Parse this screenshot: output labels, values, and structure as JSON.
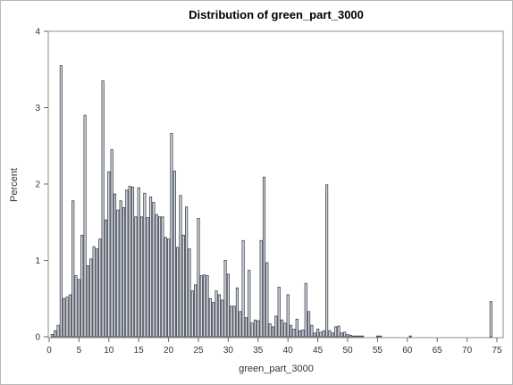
{
  "chart_data": {
    "type": "bar",
    "title": "Distribution of green_part_3000",
    "xlabel": "green_part_3000",
    "ylabel": "Percent",
    "xlim": [
      0,
      75
    ],
    "ylim": [
      0,
      4
    ],
    "bin_width": 0.5,
    "x_ticks": [
      0,
      5,
      10,
      15,
      20,
      25,
      30,
      35,
      40,
      45,
      50,
      55,
      60,
      65,
      70,
      75
    ],
    "y_ticks": [
      0,
      1,
      2,
      3,
      4
    ],
    "bar_fill": "#d9dee8",
    "bar_stroke": "#3a3f48",
    "x": [
      0.5,
      1.0,
      1.5,
      2.0,
      2.5,
      3.0,
      3.5,
      4.0,
      4.5,
      5.0,
      5.5,
      6.0,
      6.5,
      7.0,
      7.5,
      8.0,
      8.5,
      9.0,
      9.5,
      10.0,
      10.5,
      11.0,
      11.5,
      12.0,
      12.5,
      13.0,
      13.5,
      14.0,
      14.5,
      15.0,
      15.5,
      16.0,
      16.5,
      17.0,
      17.5,
      18.0,
      18.5,
      19.0,
      19.5,
      20.0,
      20.5,
      21.0,
      21.5,
      22.0,
      22.5,
      23.0,
      23.5,
      24.0,
      24.5,
      25.0,
      25.5,
      26.0,
      26.5,
      27.0,
      27.5,
      28.0,
      28.5,
      29.0,
      29.5,
      30.0,
      30.5,
      31.0,
      31.5,
      32.0,
      32.5,
      33.0,
      33.5,
      34.0,
      34.5,
      35.0,
      35.5,
      36.0,
      36.5,
      37.0,
      37.5,
      38.0,
      38.5,
      39.0,
      39.5,
      40.0,
      40.5,
      41.0,
      41.5,
      42.0,
      42.5,
      43.0,
      43.5,
      44.0,
      44.5,
      45.0,
      45.5,
      46.0,
      46.5,
      47.0,
      47.5,
      48.0,
      48.5,
      49.0,
      49.5,
      50.0,
      50.5,
      51.0,
      51.5,
      52.0,
      52.5,
      53.0,
      53.5,
      54.0,
      54.5,
      55.0,
      55.5,
      56.0,
      56.5,
      57.0,
      57.5,
      58.0,
      58.5,
      59.0,
      59.5,
      60.0,
      60.5,
      61.0,
      61.5,
      62.0,
      62.5,
      63.0,
      63.5,
      64.0,
      64.5,
      65.0,
      65.5,
      66.0,
      66.5,
      67.0,
      67.5,
      68.0,
      68.5,
      69.0,
      69.5,
      70.0,
      70.5,
      71.0,
      71.5,
      72.0,
      72.5,
      73.0,
      73.5,
      74.0
    ],
    "values": [
      0.03,
      0.08,
      0.15,
      3.55,
      0.5,
      0.52,
      0.55,
      1.78,
      0.8,
      0.75,
      1.33,
      2.9,
      0.93,
      1.02,
      1.18,
      1.15,
      1.28,
      3.35,
      1.53,
      2.16,
      2.45,
      1.87,
      1.66,
      1.78,
      1.69,
      1.92,
      1.97,
      1.96,
      1.57,
      1.95,
      1.57,
      1.88,
      1.56,
      1.83,
      1.76,
      1.6,
      1.57,
      1.57,
      1.3,
      1.28,
      2.66,
      2.17,
      1.17,
      1.85,
      1.33,
      1.7,
      1.15,
      0.6,
      0.68,
      1.55,
      0.8,
      0.81,
      0.8,
      0.5,
      0.45,
      0.6,
      0.55,
      0.48,
      1.0,
      0.82,
      0.4,
      0.4,
      0.64,
      0.33,
      1.26,
      0.25,
      0.87,
      0.18,
      0.22,
      0.21,
      1.26,
      2.09,
      0.97,
      0.17,
      0.13,
      0.27,
      0.65,
      0.22,
      0.18,
      0.55,
      0.15,
      0.1,
      0.23,
      0.08,
      0.09,
      0.7,
      0.33,
      0.15,
      0.05,
      0.1,
      0.06,
      0.08,
      1.99,
      0.08,
      0.05,
      0.13,
      0.14,
      0.05,
      0.06,
      0.03,
      0.02,
      0.01,
      0.01,
      0.01,
      0.01,
      0.0,
      0.0,
      0.0,
      0.0,
      0.01,
      0.01,
      0.0,
      0.0,
      0.0,
      0.0,
      0.0,
      0.0,
      0.0,
      0.0,
      0.0,
      0.01,
      0.0,
      0.0,
      0.0,
      0.0,
      0.0,
      0.0,
      0.0,
      0.0,
      0.0,
      0.0,
      0.0,
      0.0,
      0.0,
      0.0,
      0.0,
      0.0,
      0.0,
      0.0,
      0.0,
      0.0,
      0.0,
      0.0,
      0.0,
      0.0,
      0.0,
      0.0,
      0.46
    ]
  }
}
